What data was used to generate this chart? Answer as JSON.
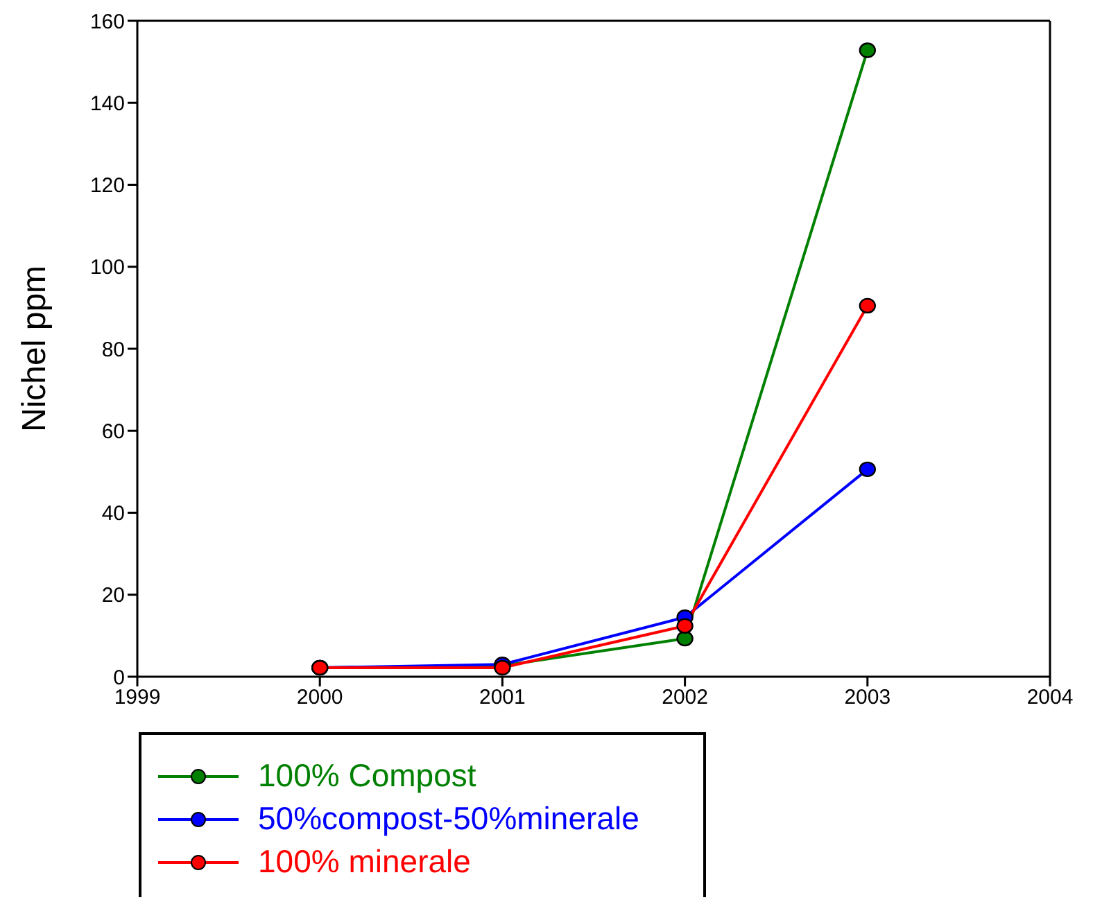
{
  "chart_data": {
    "type": "line",
    "ylabel": "Nichel ppm",
    "x": [
      2000,
      2001,
      2002,
      2003
    ],
    "series": [
      {
        "name": "100% Compost",
        "color": "#008000",
        "values": [
          2.2,
          2.7,
          9.3,
          152.8
        ]
      },
      {
        "name": "50%compost-50%minerale",
        "color": "#0000ff",
        "values": [
          2.2,
          3.0,
          14.5,
          50.6
        ]
      },
      {
        "name": "100% minerale",
        "color": "#ff0000",
        "values": [
          2.2,
          2.2,
          12.4,
          90.5
        ]
      }
    ],
    "xlim": [
      1999,
      2004
    ],
    "xticks": [
      1999,
      2000,
      2001,
      2002,
      2003,
      2004
    ],
    "ylim": [
      0,
      160
    ],
    "yticks": [
      0,
      20,
      40,
      60,
      80,
      100,
      120,
      140,
      160
    ],
    "marker": "circle",
    "line_style": "solid",
    "grid": false,
    "legend": "bottom left"
  }
}
